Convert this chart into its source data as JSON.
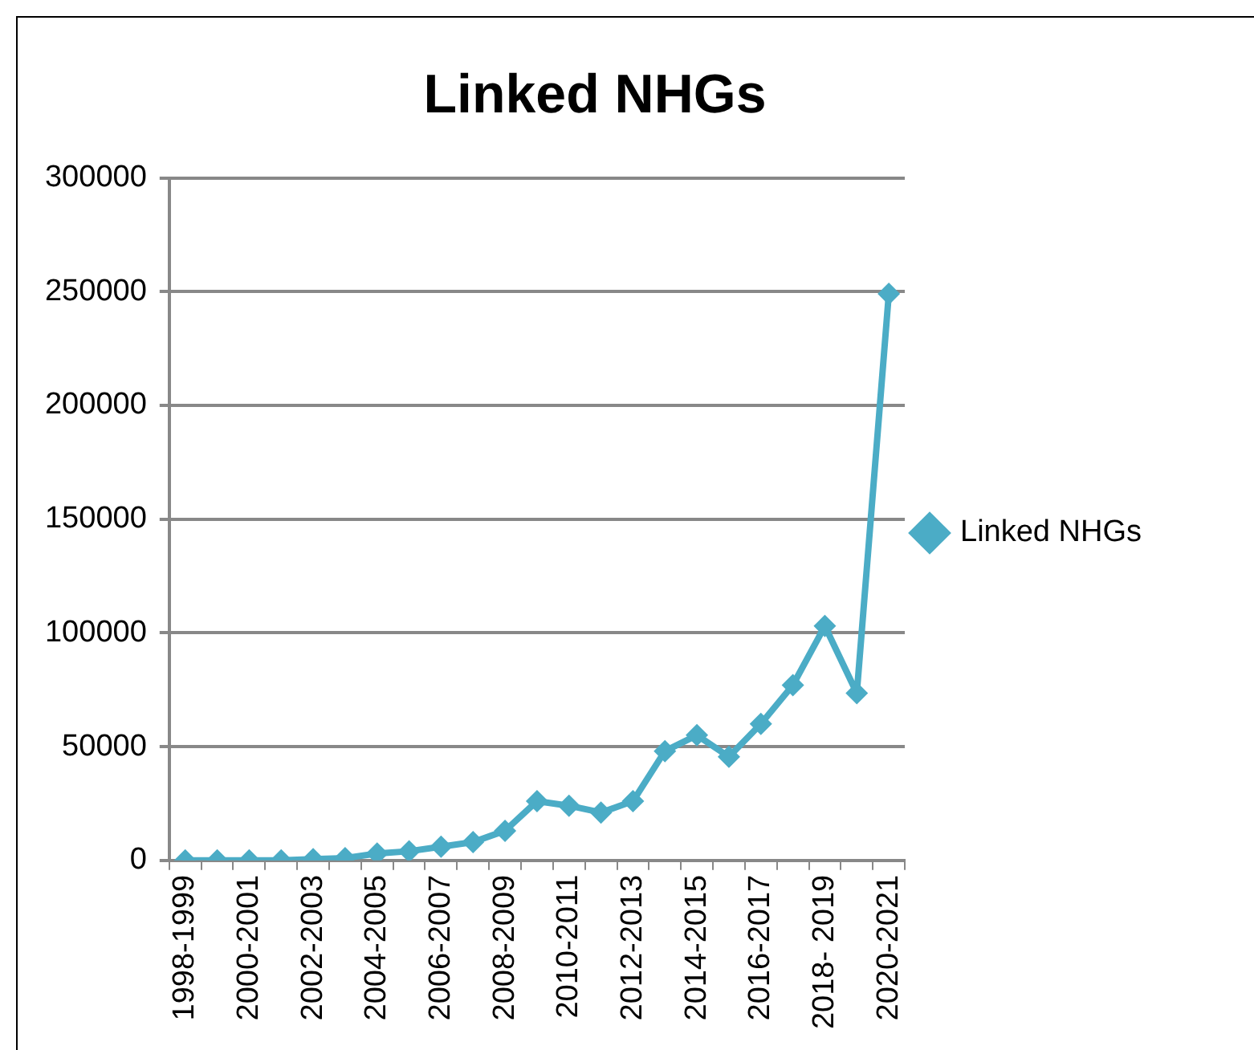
{
  "chart_data": {
    "type": "line",
    "title": "Linked NHGs",
    "categories": [
      "1998-1999",
      null,
      "2000-2001",
      null,
      "2002-2003",
      null,
      "2004-2005",
      null,
      "2006-2007",
      null,
      "2008-2009",
      null,
      "2010-2011",
      null,
      "2012-2013",
      null,
      "2014-2015",
      null,
      "2016-2017",
      null,
      "2018- 2019",
      null,
      "2020-2021"
    ],
    "series": [
      {
        "name": "Linked NHGs",
        "color": "#4bacc6",
        "values": [
          0,
          0,
          0,
          0,
          500,
          1000,
          3000,
          4000,
          6000,
          8000,
          13000,
          26000,
          24000,
          21000,
          26000,
          48000,
          55000,
          45500,
          60000,
          77000,
          103000,
          73500,
          249000
        ]
      }
    ],
    "ylim": [
      0,
      300000
    ],
    "yticks": [
      0,
      50000,
      100000,
      150000,
      200000,
      250000,
      300000
    ],
    "grid": "y",
    "legend": "right",
    "marker": "diamond",
    "line_style": "solid"
  }
}
